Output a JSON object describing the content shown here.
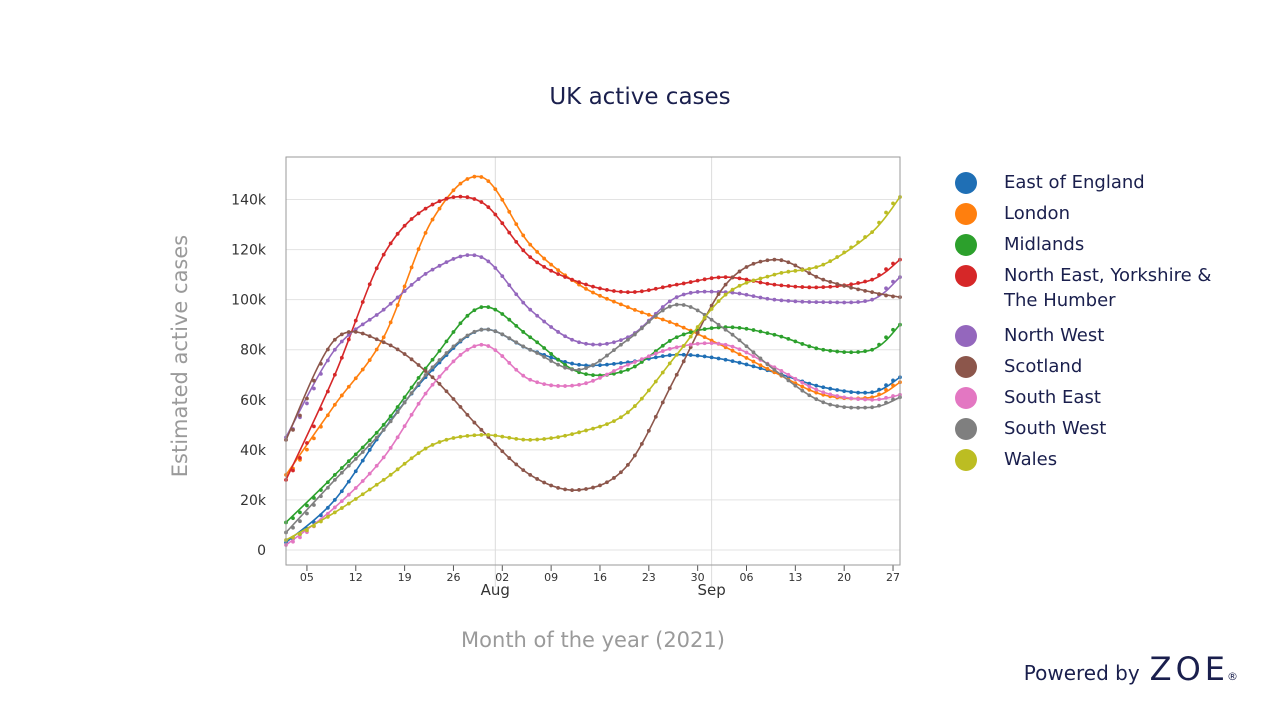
{
  "chart_data": {
    "type": "line",
    "title": "UK active cases",
    "xlabel": "Month of the year (2021)",
    "ylabel": "Estimated active cases",
    "x_range": [
      "2021-07-02",
      "2021-09-28"
    ],
    "ylim": [
      -6000,
      157000
    ],
    "grid": true,
    "legend_position": "right",
    "x_tick_labels": [
      "05",
      "12",
      "19",
      "26",
      "02",
      "09",
      "16",
      "23",
      "30",
      "06",
      "13",
      "20",
      "27"
    ],
    "month_labels": [
      "Aug",
      "Sep"
    ],
    "y_tick_labels": [
      "0",
      "20k",
      "40k",
      "60k",
      "80k",
      "100k",
      "120k",
      "140k"
    ],
    "y_ticks": [
      0,
      20000,
      40000,
      60000,
      80000,
      100000,
      120000,
      140000
    ],
    "x": [
      "2021-07-02",
      "2021-07-09",
      "2021-07-16",
      "2021-07-23",
      "2021-07-30",
      "2021-08-06",
      "2021-08-13",
      "2021-08-20",
      "2021-08-27",
      "2021-09-03",
      "2021-09-10",
      "2021-09-17",
      "2021-09-24",
      "2021-09-28"
    ],
    "series": [
      {
        "name": "East of England",
        "color": "#1f6fb5",
        "values": [
          3000,
          20000,
          48000,
          72000,
          88000,
          80000,
          74000,
          75000,
          78000,
          76000,
          71000,
          65000,
          63000,
          69000
        ]
      },
      {
        "name": "London",
        "color": "#ff7f0e",
        "values": [
          30000,
          58000,
          85000,
          132000,
          149000,
          122000,
          106000,
          97000,
          90000,
          81000,
          71000,
          62000,
          61000,
          67000
        ]
      },
      {
        "name": "Midlands",
        "color": "#2ca02c",
        "values": [
          11000,
          30000,
          50000,
          76000,
          97000,
          85000,
          71000,
          72000,
          85000,
          89000,
          86000,
          80000,
          80000,
          90000
        ]
      },
      {
        "name": "North East, Yorkshire & The Humber",
        "color": "#d62728",
        "values": [
          28000,
          70000,
          118000,
          138000,
          139000,
          117000,
          107000,
          103000,
          106000,
          109000,
          106000,
          105000,
          108000,
          116000
        ]
      },
      {
        "name": "North West",
        "color": "#9467bd",
        "values": [
          45000,
          80000,
          96000,
          112000,
          117000,
          96000,
          83000,
          85000,
          101000,
          103000,
          100000,
          99000,
          100000,
          109000
        ]
      },
      {
        "name": "Scotland",
        "color": "#8c564b",
        "values": [
          44000,
          84000,
          83000,
          69000,
          48000,
          30000,
          24000,
          34000,
          70000,
          106000,
          116000,
          108000,
          103000,
          101000
        ]
      },
      {
        "name": "South East",
        "color": "#e377c2",
        "values": [
          2000,
          17000,
          37000,
          66000,
          82000,
          68000,
          66000,
          74000,
          81000,
          82000,
          73000,
          63000,
          60000,
          62000
        ]
      },
      {
        "name": "South West",
        "color": "#7f7f7f",
        "values": [
          7000,
          28000,
          48000,
          73000,
          88000,
          80000,
          72000,
          84000,
          98000,
          88000,
          72000,
          59000,
          57000,
          61000
        ]
      },
      {
        "name": "Wales",
        "color": "#bcbd22",
        "values": [
          4000,
          15000,
          28000,
          42000,
          46000,
          44000,
          47000,
          55000,
          78000,
          102000,
          110000,
          114000,
          127000,
          141000
        ]
      }
    ]
  },
  "branding": {
    "powered_by": "Powered by",
    "brand": "ZOE",
    "registered": "®"
  }
}
